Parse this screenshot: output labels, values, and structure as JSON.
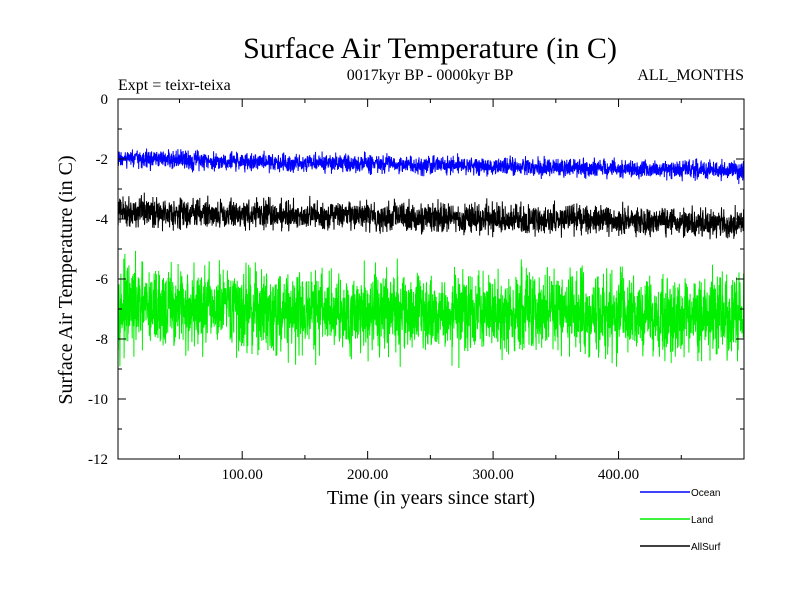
{
  "chart_data": {
    "type": "line",
    "title": "Surface Air Temperature (in C)",
    "subtitle": "0017kyr BP - 0000kyr BP",
    "experiment_label": "Expt = teixr-teixa",
    "months_label": "ALL_MONTHS",
    "xlabel": "Time (in years since start)",
    "ylabel": "Surface Air Temperature (in C)",
    "xlim": [
      1,
      500
    ],
    "ylim": [
      -12,
      0
    ],
    "x_ticks": [
      100,
      200,
      300,
      400
    ],
    "x_tick_labels": [
      "100.00",
      "200.00",
      "300.00",
      "400.00"
    ],
    "y_ticks": [
      0,
      -2,
      -4,
      -6,
      -8,
      -10,
      -12
    ],
    "y_tick_labels": [
      "0",
      "-2",
      "-4",
      "-6",
      "-8",
      "-10",
      "-12"
    ],
    "grid": false,
    "legend_position": "below-right",
    "series": [
      {
        "name": "Ocean",
        "color": "#0000ff",
        "mean": -2.2,
        "noise_amplitude": 0.35,
        "trend": -0.2
      },
      {
        "name": "Land",
        "color": "#00ee00",
        "mean": -7.1,
        "noise_amplitude": 1.55,
        "trend": -0.15
      },
      {
        "name": "AllSurf",
        "color": "#000000",
        "mean": -3.95,
        "noise_amplitude": 0.55,
        "trend": -0.2
      }
    ]
  }
}
